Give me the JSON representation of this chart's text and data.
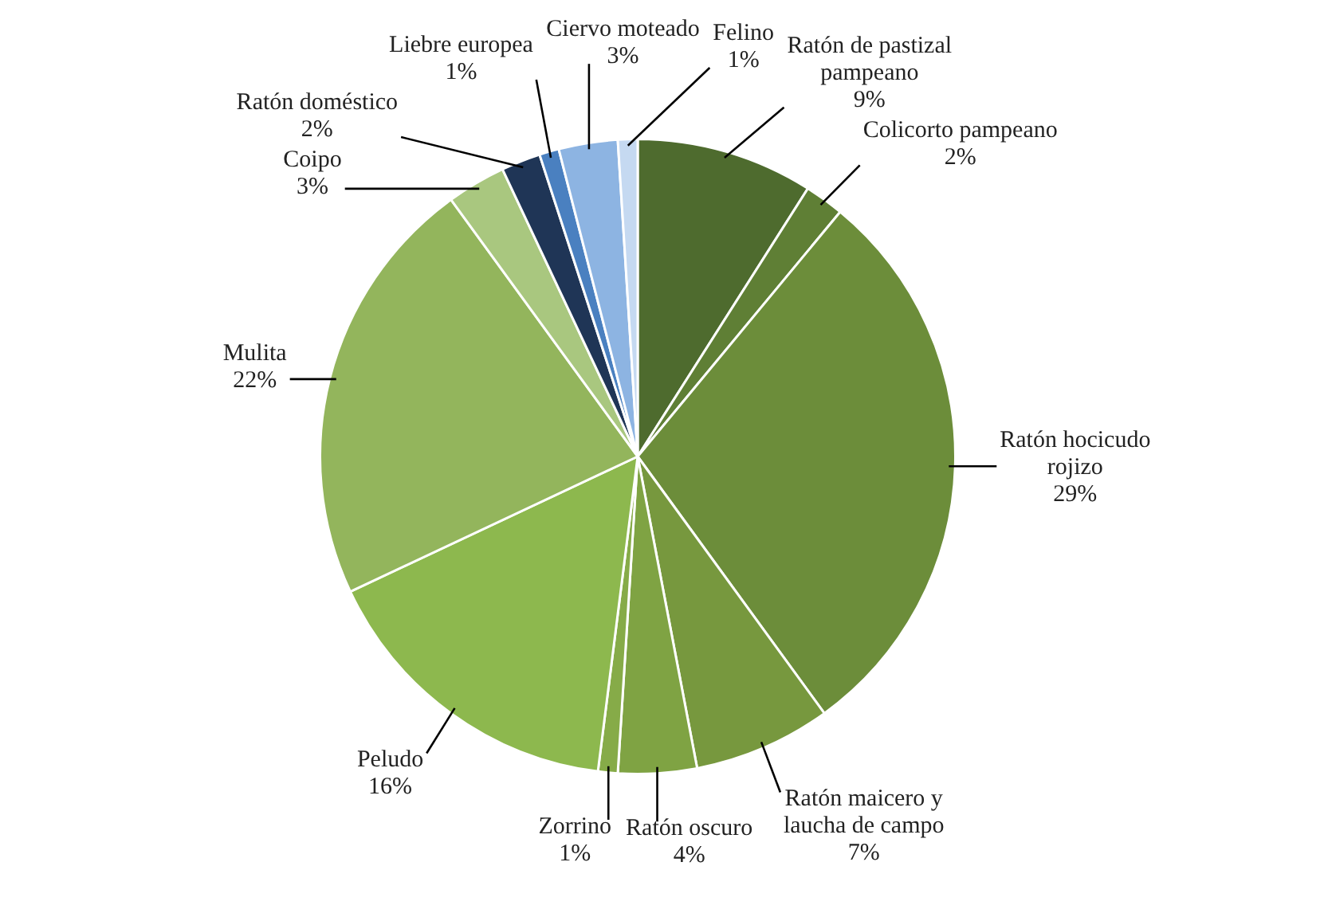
{
  "chart_data": {
    "type": "pie",
    "categories": [
      "Ratón de pastizal pampeano",
      "Colicorto pampeano",
      "Ratón hocicudo rojizo",
      "Ratón maicero y laucha de campo",
      "Ratón oscuro",
      "Zorrino",
      "Peludo",
      "Mulita",
      "Coipo",
      "Ratón doméstico",
      "Liebre europea",
      "Ciervo moteado",
      "Felino"
    ],
    "values": [
      9,
      2,
      29,
      7,
      4,
      1,
      16,
      22,
      3,
      2,
      1,
      3,
      1
    ],
    "colors": [
      "#4e6b2e",
      "#5f7f35",
      "#6c8d3a",
      "#77983e",
      "#7fa343",
      "#86ab48",
      "#8db84e",
      "#93b55c",
      "#a9c77f",
      "#1f3556",
      "#4a80c0",
      "#8db4e2",
      "#c5d9f1"
    ],
    "value_labels": [
      "9%",
      "2%",
      "29%",
      "7%",
      "4%",
      "1%",
      "16%",
      "22%",
      "3%",
      "2%",
      "1%",
      "3%",
      "1%"
    ],
    "legend": false
  }
}
